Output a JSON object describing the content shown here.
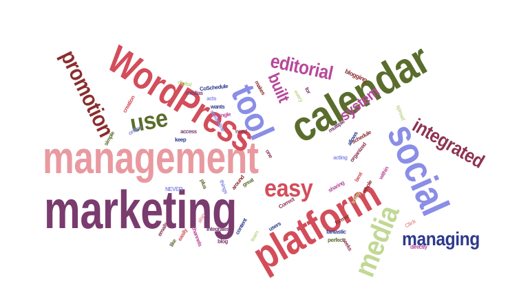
{
  "cloud": {
    "management": "management",
    "marketing": "marketing",
    "calendar": "calendar",
    "wordpress": "WordPress",
    "platform": "platform",
    "social": "social",
    "media": "media",
    "tool": "tool",
    "promotion": "promotion",
    "editorial": "editorial",
    "integrated": "integrated",
    "easy": "easy",
    "managing": "managing",
    "use": "use",
    "system": "system",
    "built": "built",
    "blogging": "blogging",
    "digital": "digital",
    "medias": "medias",
    "coschedule": "CoSchedule",
    "acts": "acts",
    "wants": "wants",
    "single": "single",
    "makes": "makes",
    "creation": "creation",
    "simple": "simple",
    "access": "access",
    "keep": "keep",
    "need": "need",
    "streamline": "streamline",
    "multiple": "multiple",
    "schedule": "schedule",
    "organized": "organized",
    "acting": "acting",
    "spread": "spread",
    "within": "within",
    "best": "best",
    "never": "NEVER",
    "great": "great",
    "around": "around",
    "sharing": "sharing",
    "correct": "Correct",
    "integrates": "Integrates",
    "content": "content",
    "users": "users",
    "fantastic": "fantastic",
    "perfect": "perfect",
    "former": "former",
    "directly": "directly",
    "blog": "blog",
    "emails": "emails",
    "like": "like",
    "easily": "easily",
    "channels": "channels",
    "plus": "plus",
    "things": "things",
    "team": "team",
    "seeks": "seeks",
    "today": "today",
    "whole": "whole",
    "allows": "allows",
    "online": "online",
    "click": "Click",
    "for": "for",
    "every": "every",
    "also": "also",
    "one": "one"
  },
  "colors": {
    "pink": "#e89aa0",
    "purple": "#7a3b6e",
    "olive": "#5a6d2c",
    "red": "#d34d5a",
    "lavender": "#8a8ee6",
    "brown": "#8b2d2d",
    "magenta": "#b8489a",
    "maroon": "#8e3352",
    "navy": "#2d3a8c",
    "lime": "#c2d894"
  }
}
